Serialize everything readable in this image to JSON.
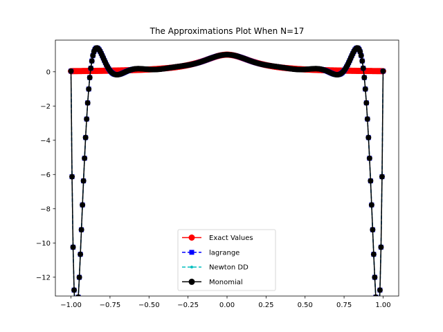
{
  "chart_data": {
    "type": "line",
    "title": "The Approximations Plot When N=17",
    "xlabel": "",
    "ylabel": "",
    "xlim": [
      -1.1,
      1.1
    ],
    "ylim": [
      -13.1,
      1.85
    ],
    "xticks": [
      -1.0,
      -0.75,
      -0.5,
      -0.25,
      0.0,
      0.25,
      0.5,
      0.75,
      1.0
    ],
    "xtick_labels": [
      "−1.00",
      "−0.75",
      "−0.50",
      "−0.25",
      "0.00",
      "0.25",
      "0.50",
      "0.75",
      "1.00"
    ],
    "yticks": [
      0,
      -2,
      -4,
      -6,
      -8,
      -10,
      -12
    ],
    "ytick_labels": [
      "0",
      "−2",
      "−4",
      "−6",
      "−8",
      "−10",
      "−12"
    ],
    "grid": false,
    "legend_position": "bottom-center",
    "function": "1/(1+25x^2)",
    "nodes": 17,
    "x_range": [
      -1,
      1
    ],
    "sample_count": 300,
    "series": [
      {
        "name": "Exact Values",
        "color": "#ff0000",
        "marker": "circle",
        "linestyle": "solid",
        "role": "exact"
      },
      {
        "name": "lagrange",
        "color": "#0000ff",
        "marker": "square",
        "linestyle": "dashed",
        "role": "interpolant"
      },
      {
        "name": "Newton DD",
        "color": "#00bfbf",
        "marker": "point",
        "linestyle": "dashed",
        "role": "interpolant"
      },
      {
        "name": "Monomial",
        "color": "#000000",
        "marker": "circle",
        "linestyle": "solid",
        "role": "interpolant"
      }
    ]
  }
}
